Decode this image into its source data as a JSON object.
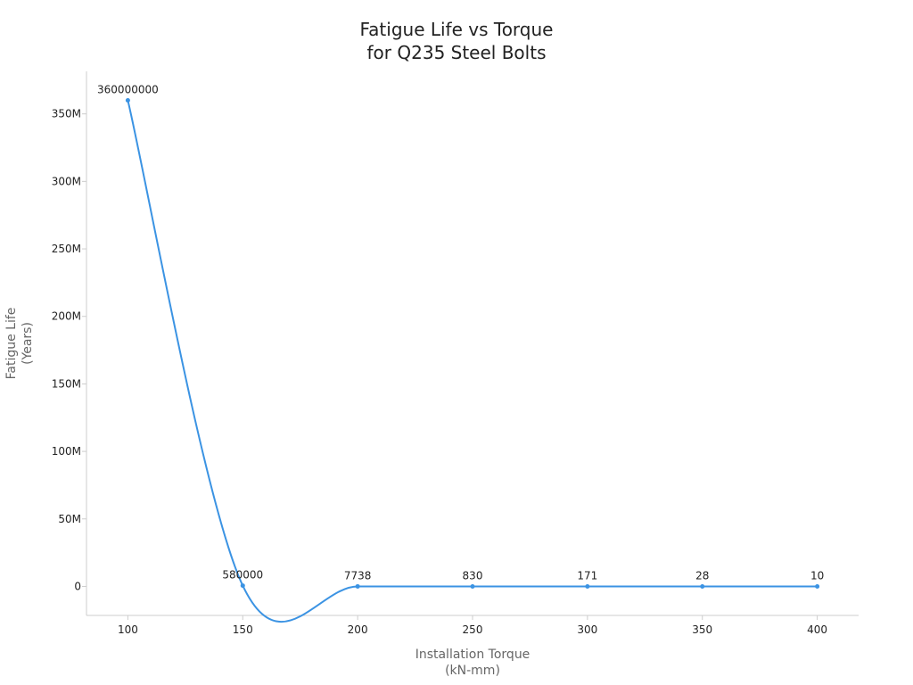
{
  "chart_data": {
    "type": "line",
    "title": [
      "Fatigue Life vs Torque",
      "for Q235 Steel Bolts"
    ],
    "xlabel": [
      "Installation Torque",
      "(kN-mm)"
    ],
    "ylabel": [
      "Fatigue Life",
      "(Years)"
    ],
    "x": [
      100,
      150,
      200,
      250,
      300,
      350,
      400
    ],
    "y": [
      360000000,
      580000,
      7738,
      830,
      171,
      28,
      10
    ],
    "point_labels": [
      "360000000",
      "580000",
      "7738",
      "830",
      "171",
      "28",
      "10"
    ],
    "x_ticks": [
      100,
      150,
      200,
      250,
      300,
      350,
      400
    ],
    "x_tick_labels": [
      "100",
      "150",
      "200",
      "250",
      "300",
      "350",
      "400"
    ],
    "y_ticks": [
      0,
      50000000,
      100000000,
      150000000,
      200000000,
      250000000,
      300000000,
      350000000
    ],
    "y_tick_labels": [
      "0",
      "50M",
      "100M",
      "150M",
      "200M",
      "250M",
      "300M",
      "350M"
    ],
    "xlim": [
      82,
      418
    ],
    "ylim": [
      -21500000,
      381500000
    ],
    "grid": false,
    "smooth": true,
    "line_color": "#3b93e3",
    "axis_color": "#cccccc"
  }
}
